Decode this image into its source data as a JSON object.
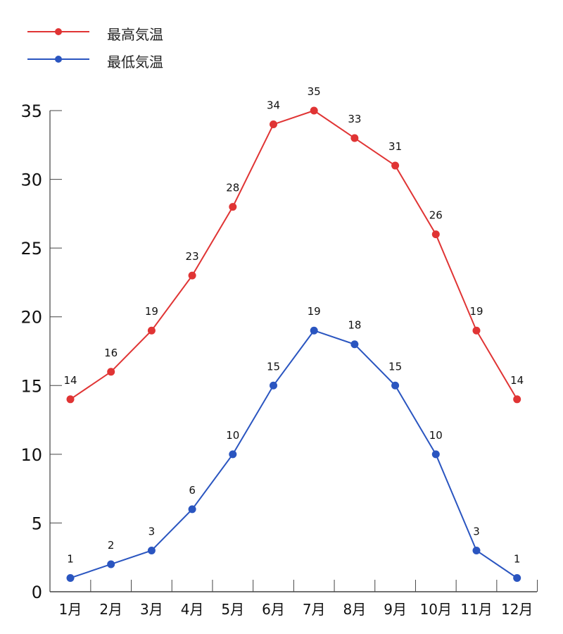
{
  "legend": [
    {
      "label": "最高気温",
      "color": "#e03434"
    },
    {
      "label": "最低気温",
      "color": "#2a55c0"
    }
  ],
  "chart_data": {
    "type": "line",
    "title": "",
    "xlabel": "",
    "ylabel": "",
    "categories": [
      "1月",
      "2月",
      "3月",
      "4月",
      "5月",
      "6月",
      "7月",
      "8月",
      "9月",
      "10月",
      "11月",
      "12月"
    ],
    "series": [
      {
        "name": "最高気温",
        "color": "#e03434",
        "values": [
          14,
          16,
          19,
          23,
          28,
          34,
          35,
          33,
          31,
          26,
          19,
          14
        ]
      },
      {
        "name": "最低気温",
        "color": "#2a55c0",
        "values": [
          1,
          2,
          3,
          6,
          10,
          15,
          19,
          18,
          15,
          10,
          3,
          1
        ]
      }
    ],
    "ylim": [
      0,
      35
    ],
    "yticks": [
      0,
      5,
      10,
      15,
      20,
      25,
      30,
      35
    ],
    "grid": false,
    "data_labels": true,
    "legend_position": "top-left"
  }
}
